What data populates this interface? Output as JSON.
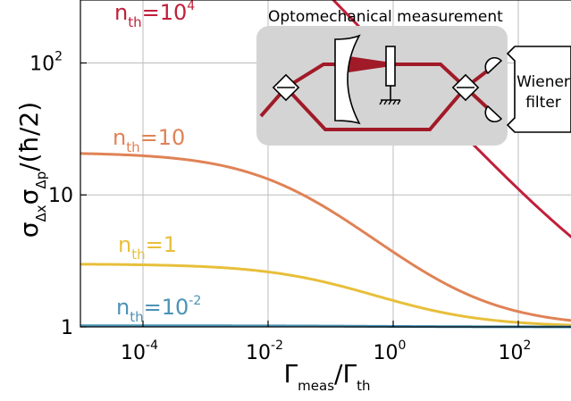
{
  "chart_data": {
    "type": "line",
    "xscale": "log",
    "yscale": "log",
    "xlim": [
      1e-05,
      1000
    ],
    "ylim": [
      1,
      300
    ],
    "x_ticks": [
      {
        "value": 0.0001,
        "base": "10",
        "exp": "-4"
      },
      {
        "value": 0.01,
        "base": "10",
        "exp": "-2"
      },
      {
        "value": 1,
        "base": "10",
        "exp": "0"
      },
      {
        "value": 100,
        "base": "10",
        "exp": "2"
      }
    ],
    "y_ticks": [
      {
        "value": 1,
        "base": "1",
        "exp": ""
      },
      {
        "value": 10,
        "base": "10",
        "exp": ""
      },
      {
        "value": 100,
        "base": "10",
        "exp": "2"
      }
    ],
    "xlabel": {
      "main1": "Γ",
      "sub1": "meas",
      "slash": "/",
      "main2": "Γ",
      "sub2": "th"
    },
    "ylabel": {
      "s1": "σ",
      "sub1": "Δx",
      "s2": "σ",
      "sub2": "Δp",
      "rest": "/(ħ/2)"
    },
    "grid": true,
    "series": [
      {
        "n_th": 10000,
        "label_main": "n",
        "label_sub": "th",
        "label_eq": "=10",
        "label_sup": "4",
        "color": "#c11f3a"
      },
      {
        "n_th": 10,
        "label_main": "n",
        "label_sub": "th",
        "label_eq": "=10",
        "label_sup": "",
        "color": "#e08256"
      },
      {
        "n_th": 1,
        "label_main": "n",
        "label_sub": "th",
        "label_eq": "=1",
        "label_sup": "",
        "color": "#e8bf3a"
      },
      {
        "n_th": 0.01,
        "label_main": "n",
        "label_sub": "th",
        "label_eq": "=10",
        "label_sup": "-2",
        "color": "#4a93b5"
      }
    ]
  },
  "inset": {
    "title": "Optomechanical measurement",
    "filter_line1": "Wiener",
    "filter_line2": "filter",
    "beam_color": "#a11a28",
    "box_color": "#d4d4d4"
  }
}
